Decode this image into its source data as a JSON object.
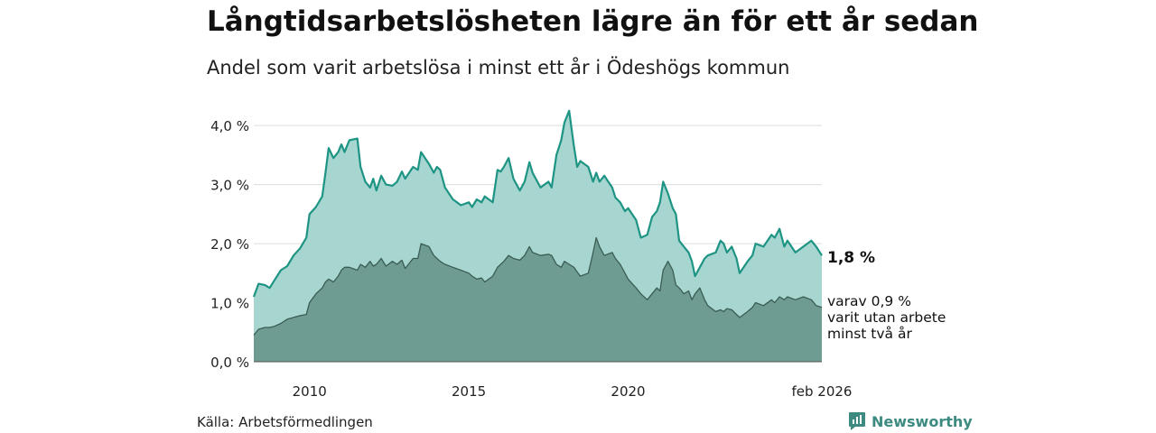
{
  "chart_data": {
    "type": "area",
    "title": "Långtidsarbetslösheten lägre än för ett år sedan",
    "subtitle": "Andel som varit arbetslösa i minst ett år i Ödeshögs kommun",
    "source": "Källa: Arbetsförmedlingen",
    "brand": "Newsworthy",
    "ylim": [
      0,
      4.4
    ],
    "y_ticks": [
      {
        "value": 0,
        "label": "0,0 %"
      },
      {
        "value": 1,
        "label": "1,0 %"
      },
      {
        "value": 2,
        "label": "2,0 %"
      },
      {
        "value": 3,
        "label": "3,0 %"
      },
      {
        "value": 4,
        "label": "4,0 %"
      }
    ],
    "x_range": [
      2008.25,
      2026.08
    ],
    "x_ticks": [
      {
        "value": 2010,
        "label": "2010"
      },
      {
        "value": 2015,
        "label": "2015"
      },
      {
        "value": 2020,
        "label": "2020"
      },
      {
        "value": 2026.08,
        "label": "feb 2026"
      }
    ],
    "series": [
      {
        "name": "Minst ett år",
        "color": "#1e9484",
        "fill": "#a6d6cf",
        "end_label": "1,8 %",
        "points": [
          [
            2008.25,
            1.1
          ],
          [
            2008.4,
            1.32
          ],
          [
            2008.6,
            1.3
          ],
          [
            2008.75,
            1.25
          ],
          [
            2008.9,
            1.38
          ],
          [
            2009.1,
            1.55
          ],
          [
            2009.3,
            1.62
          ],
          [
            2009.5,
            1.8
          ],
          [
            2009.7,
            1.92
          ],
          [
            2009.9,
            2.1
          ],
          [
            2010.0,
            2.5
          ],
          [
            2010.2,
            2.62
          ],
          [
            2010.4,
            2.8
          ],
          [
            2010.5,
            3.2
          ],
          [
            2010.6,
            3.62
          ],
          [
            2010.75,
            3.45
          ],
          [
            2010.9,
            3.55
          ],
          [
            2011.0,
            3.68
          ],
          [
            2011.1,
            3.55
          ],
          [
            2011.25,
            3.75
          ],
          [
            2011.5,
            3.78
          ],
          [
            2011.6,
            3.3
          ],
          [
            2011.75,
            3.05
          ],
          [
            2011.9,
            2.95
          ],
          [
            2012.0,
            3.1
          ],
          [
            2012.1,
            2.9
          ],
          [
            2012.25,
            3.15
          ],
          [
            2012.4,
            3.0
          ],
          [
            2012.6,
            2.98
          ],
          [
            2012.75,
            3.05
          ],
          [
            2012.9,
            3.22
          ],
          [
            2013.0,
            3.1
          ],
          [
            2013.25,
            3.3
          ],
          [
            2013.4,
            3.25
          ],
          [
            2013.5,
            3.55
          ],
          [
            2013.75,
            3.35
          ],
          [
            2013.9,
            3.2
          ],
          [
            2014.0,
            3.3
          ],
          [
            2014.1,
            3.25
          ],
          [
            2014.25,
            2.95
          ],
          [
            2014.5,
            2.75
          ],
          [
            2014.75,
            2.65
          ],
          [
            2015.0,
            2.7
          ],
          [
            2015.1,
            2.62
          ],
          [
            2015.25,
            2.75
          ],
          [
            2015.4,
            2.7
          ],
          [
            2015.5,
            2.8
          ],
          [
            2015.75,
            2.7
          ],
          [
            2015.9,
            3.25
          ],
          [
            2016.0,
            3.22
          ],
          [
            2016.1,
            3.3
          ],
          [
            2016.25,
            3.45
          ],
          [
            2016.4,
            3.1
          ],
          [
            2016.6,
            2.9
          ],
          [
            2016.75,
            3.05
          ],
          [
            2016.9,
            3.38
          ],
          [
            2017.0,
            3.2
          ],
          [
            2017.25,
            2.95
          ],
          [
            2017.5,
            3.05
          ],
          [
            2017.6,
            2.95
          ],
          [
            2017.75,
            3.5
          ],
          [
            2017.9,
            3.75
          ],
          [
            2018.0,
            4.05
          ],
          [
            2018.15,
            4.25
          ],
          [
            2018.3,
            3.65
          ],
          [
            2018.4,
            3.3
          ],
          [
            2018.5,
            3.4
          ],
          [
            2018.75,
            3.3
          ],
          [
            2018.9,
            3.05
          ],
          [
            2019.0,
            3.2
          ],
          [
            2019.1,
            3.05
          ],
          [
            2019.25,
            3.15
          ],
          [
            2019.5,
            2.95
          ],
          [
            2019.6,
            2.78
          ],
          [
            2019.75,
            2.7
          ],
          [
            2019.9,
            2.55
          ],
          [
            2020.0,
            2.6
          ],
          [
            2020.25,
            2.4
          ],
          [
            2020.4,
            2.1
          ],
          [
            2020.6,
            2.15
          ],
          [
            2020.75,
            2.45
          ],
          [
            2020.9,
            2.55
          ],
          [
            2021.0,
            2.7
          ],
          [
            2021.1,
            3.05
          ],
          [
            2021.25,
            2.85
          ],
          [
            2021.4,
            2.6
          ],
          [
            2021.5,
            2.5
          ],
          [
            2021.6,
            2.05
          ],
          [
            2021.75,
            1.95
          ],
          [
            2021.9,
            1.85
          ],
          [
            2022.0,
            1.7
          ],
          [
            2022.1,
            1.45
          ],
          [
            2022.25,
            1.6
          ],
          [
            2022.4,
            1.75
          ],
          [
            2022.5,
            1.8
          ],
          [
            2022.75,
            1.85
          ],
          [
            2022.9,
            2.05
          ],
          [
            2023.0,
            2.0
          ],
          [
            2023.1,
            1.85
          ],
          [
            2023.25,
            1.95
          ],
          [
            2023.4,
            1.75
          ],
          [
            2023.5,
            1.5
          ],
          [
            2023.75,
            1.7
          ],
          [
            2023.9,
            1.8
          ],
          [
            2024.0,
            2.0
          ],
          [
            2024.25,
            1.95
          ],
          [
            2024.5,
            2.15
          ],
          [
            2024.6,
            2.1
          ],
          [
            2024.75,
            2.25
          ],
          [
            2024.9,
            1.95
          ],
          [
            2025.0,
            2.05
          ],
          [
            2025.25,
            1.85
          ],
          [
            2025.5,
            1.95
          ],
          [
            2025.75,
            2.05
          ],
          [
            2025.9,
            1.95
          ],
          [
            2026.08,
            1.8
          ]
        ]
      },
      {
        "name": "Minst två år",
        "color": "#3a5c54",
        "fill": "#6e9c92",
        "end_label_lines": [
          "varav 0,9 %",
          "varit utan arbete",
          "minst två år"
        ],
        "points": [
          [
            2008.25,
            0.45
          ],
          [
            2008.4,
            0.55
          ],
          [
            2008.6,
            0.58
          ],
          [
            2008.75,
            0.58
          ],
          [
            2008.9,
            0.6
          ],
          [
            2009.1,
            0.65
          ],
          [
            2009.3,
            0.72
          ],
          [
            2009.5,
            0.75
          ],
          [
            2009.7,
            0.78
          ],
          [
            2009.9,
            0.8
          ],
          [
            2010.0,
            1.0
          ],
          [
            2010.2,
            1.15
          ],
          [
            2010.4,
            1.25
          ],
          [
            2010.5,
            1.35
          ],
          [
            2010.6,
            1.4
          ],
          [
            2010.75,
            1.35
          ],
          [
            2010.9,
            1.45
          ],
          [
            2011.0,
            1.55
          ],
          [
            2011.1,
            1.6
          ],
          [
            2011.25,
            1.6
          ],
          [
            2011.5,
            1.55
          ],
          [
            2011.6,
            1.65
          ],
          [
            2011.75,
            1.6
          ],
          [
            2011.9,
            1.7
          ],
          [
            2012.0,
            1.62
          ],
          [
            2012.1,
            1.65
          ],
          [
            2012.25,
            1.75
          ],
          [
            2012.4,
            1.62
          ],
          [
            2012.6,
            1.7
          ],
          [
            2012.75,
            1.65
          ],
          [
            2012.9,
            1.72
          ],
          [
            2013.0,
            1.58
          ],
          [
            2013.25,
            1.75
          ],
          [
            2013.4,
            1.75
          ],
          [
            2013.5,
            2.0
          ],
          [
            2013.75,
            1.95
          ],
          [
            2013.9,
            1.8
          ],
          [
            2014.0,
            1.75
          ],
          [
            2014.1,
            1.7
          ],
          [
            2014.25,
            1.65
          ],
          [
            2014.5,
            1.6
          ],
          [
            2014.75,
            1.55
          ],
          [
            2015.0,
            1.5
          ],
          [
            2015.1,
            1.45
          ],
          [
            2015.25,
            1.4
          ],
          [
            2015.4,
            1.42
          ],
          [
            2015.5,
            1.35
          ],
          [
            2015.75,
            1.45
          ],
          [
            2015.9,
            1.6
          ],
          [
            2016.0,
            1.65
          ],
          [
            2016.1,
            1.7
          ],
          [
            2016.25,
            1.8
          ],
          [
            2016.4,
            1.75
          ],
          [
            2016.6,
            1.72
          ],
          [
            2016.75,
            1.8
          ],
          [
            2016.9,
            1.95
          ],
          [
            2017.0,
            1.85
          ],
          [
            2017.25,
            1.8
          ],
          [
            2017.5,
            1.82
          ],
          [
            2017.6,
            1.8
          ],
          [
            2017.75,
            1.65
          ],
          [
            2017.9,
            1.6
          ],
          [
            2018.0,
            1.7
          ],
          [
            2018.15,
            1.65
          ],
          [
            2018.3,
            1.6
          ],
          [
            2018.4,
            1.52
          ],
          [
            2018.5,
            1.45
          ],
          [
            2018.75,
            1.5
          ],
          [
            2018.9,
            1.85
          ],
          [
            2019.0,
            2.1
          ],
          [
            2019.1,
            1.95
          ],
          [
            2019.25,
            1.8
          ],
          [
            2019.5,
            1.85
          ],
          [
            2019.6,
            1.75
          ],
          [
            2019.75,
            1.65
          ],
          [
            2019.9,
            1.5
          ],
          [
            2020.0,
            1.4
          ],
          [
            2020.25,
            1.25
          ],
          [
            2020.4,
            1.15
          ],
          [
            2020.6,
            1.05
          ],
          [
            2020.75,
            1.15
          ],
          [
            2020.9,
            1.25
          ],
          [
            2021.0,
            1.2
          ],
          [
            2021.1,
            1.55
          ],
          [
            2021.25,
            1.7
          ],
          [
            2021.4,
            1.55
          ],
          [
            2021.5,
            1.3
          ],
          [
            2021.6,
            1.25
          ],
          [
            2021.75,
            1.15
          ],
          [
            2021.9,
            1.2
          ],
          [
            2022.0,
            1.05
          ],
          [
            2022.1,
            1.15
          ],
          [
            2022.25,
            1.25
          ],
          [
            2022.4,
            1.05
          ],
          [
            2022.5,
            0.95
          ],
          [
            2022.75,
            0.85
          ],
          [
            2022.9,
            0.88
          ],
          [
            2023.0,
            0.85
          ],
          [
            2023.1,
            0.9
          ],
          [
            2023.25,
            0.88
          ],
          [
            2023.4,
            0.8
          ],
          [
            2023.5,
            0.75
          ],
          [
            2023.75,
            0.85
          ],
          [
            2023.9,
            0.92
          ],
          [
            2024.0,
            1.0
          ],
          [
            2024.25,
            0.95
          ],
          [
            2024.5,
            1.05
          ],
          [
            2024.6,
            1.0
          ],
          [
            2024.75,
            1.1
          ],
          [
            2024.9,
            1.05
          ],
          [
            2025.0,
            1.1
          ],
          [
            2025.25,
            1.05
          ],
          [
            2025.5,
            1.1
          ],
          [
            2025.75,
            1.05
          ],
          [
            2025.9,
            0.95
          ],
          [
            2026.08,
            0.92
          ]
        ]
      }
    ]
  }
}
